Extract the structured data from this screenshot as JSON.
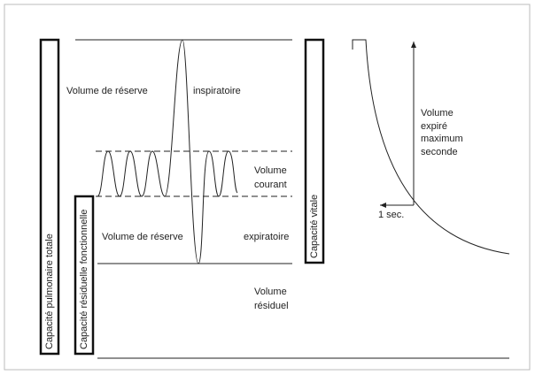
{
  "labels": {
    "irv_left": "Volume de réserve",
    "irv_right": "inspiratoire",
    "tidal": [
      "Volume",
      "courant"
    ],
    "erv_left": "Volume de réserve",
    "erv_right": "expiratoire",
    "residual": [
      "Volume",
      "résiduel"
    ],
    "tlc": "Capacité pulmonaire totale",
    "frc": "Capacité résiduelle fonctionnelle",
    "vc": "Capacité vitale",
    "fev": [
      "Volume",
      "expiré",
      "maximum",
      "seconde"
    ],
    "one_sec": "1 sec."
  }
}
